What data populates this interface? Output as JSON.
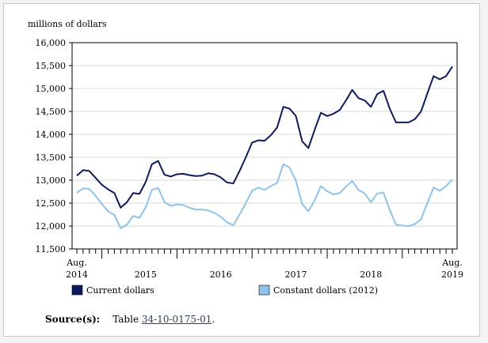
{
  "chart_data": {
    "type": "line",
    "ylabel": "millions of dollars",
    "ylim": [
      11500,
      16000
    ],
    "yticks": [
      11500,
      12000,
      12500,
      13000,
      13500,
      14000,
      14500,
      15000,
      15500,
      16000
    ],
    "ytick_labels": [
      "11,500",
      "12,000",
      "12,500",
      "13,000",
      "13,500",
      "14,000",
      "14,500",
      "15,000",
      "15,500",
      "16,000"
    ],
    "x_tick_labels": [
      {
        "line1": "Aug.",
        "line2": "2014",
        "index": 0
      },
      {
        "line1": "",
        "line2": "2015",
        "index": 11
      },
      {
        "line1": "",
        "line2": "2016",
        "index": 23
      },
      {
        "line1": "",
        "line2": "2017",
        "index": 35
      },
      {
        "line1": "",
        "line2": "2018",
        "index": 47
      },
      {
        "line1": "Aug.",
        "line2": "2019",
        "index": 60
      }
    ],
    "year_boundaries_after_index": [
      4,
      16,
      28,
      40,
      52
    ],
    "grid": "horizontal",
    "legend_position": "bottom",
    "series": [
      {
        "name": "Current dollars",
        "color": "#0d1b5e",
        "values": [
          13100,
          13220,
          13200,
          13050,
          12900,
          12800,
          12720,
          12400,
          12520,
          12720,
          12700,
          12960,
          13350,
          13420,
          13120,
          13080,
          13130,
          13140,
          13110,
          13090,
          13100,
          13150,
          13130,
          13060,
          12950,
          12930,
          13200,
          13500,
          13820,
          13870,
          13860,
          13980,
          14150,
          14600,
          14560,
          14400,
          13850,
          13700,
          14100,
          14470,
          14400,
          14450,
          14530,
          14740,
          14970,
          14790,
          14740,
          14600,
          14880,
          14950,
          14560,
          14260,
          14260,
          14260,
          14330,
          14500,
          14890,
          15270,
          15200,
          15270,
          15480
        ]
      },
      {
        "name": "Constant dollars (2012)",
        "color": "#8fc3ea",
        "values": [
          12720,
          12820,
          12810,
          12660,
          12480,
          12320,
          12240,
          11950,
          12030,
          12220,
          12180,
          12410,
          12790,
          12830,
          12520,
          12440,
          12470,
          12460,
          12400,
          12360,
          12360,
          12340,
          12290,
          12200,
          12080,
          12020,
          12250,
          12500,
          12770,
          12840,
          12790,
          12870,
          12940,
          13350,
          13270,
          12990,
          12480,
          12320,
          12560,
          12870,
          12760,
          12690,
          12720,
          12860,
          12980,
          12790,
          12710,
          12520,
          12710,
          12730,
          12350,
          12030,
          12010,
          12000,
          12040,
          12150,
          12500,
          12840,
          12770,
          12870,
          13020
        ]
      }
    ]
  },
  "source": {
    "label": "Source(s):",
    "prefix": "Table ",
    "link_text": "34-10-0175-01",
    "suffix": "."
  }
}
